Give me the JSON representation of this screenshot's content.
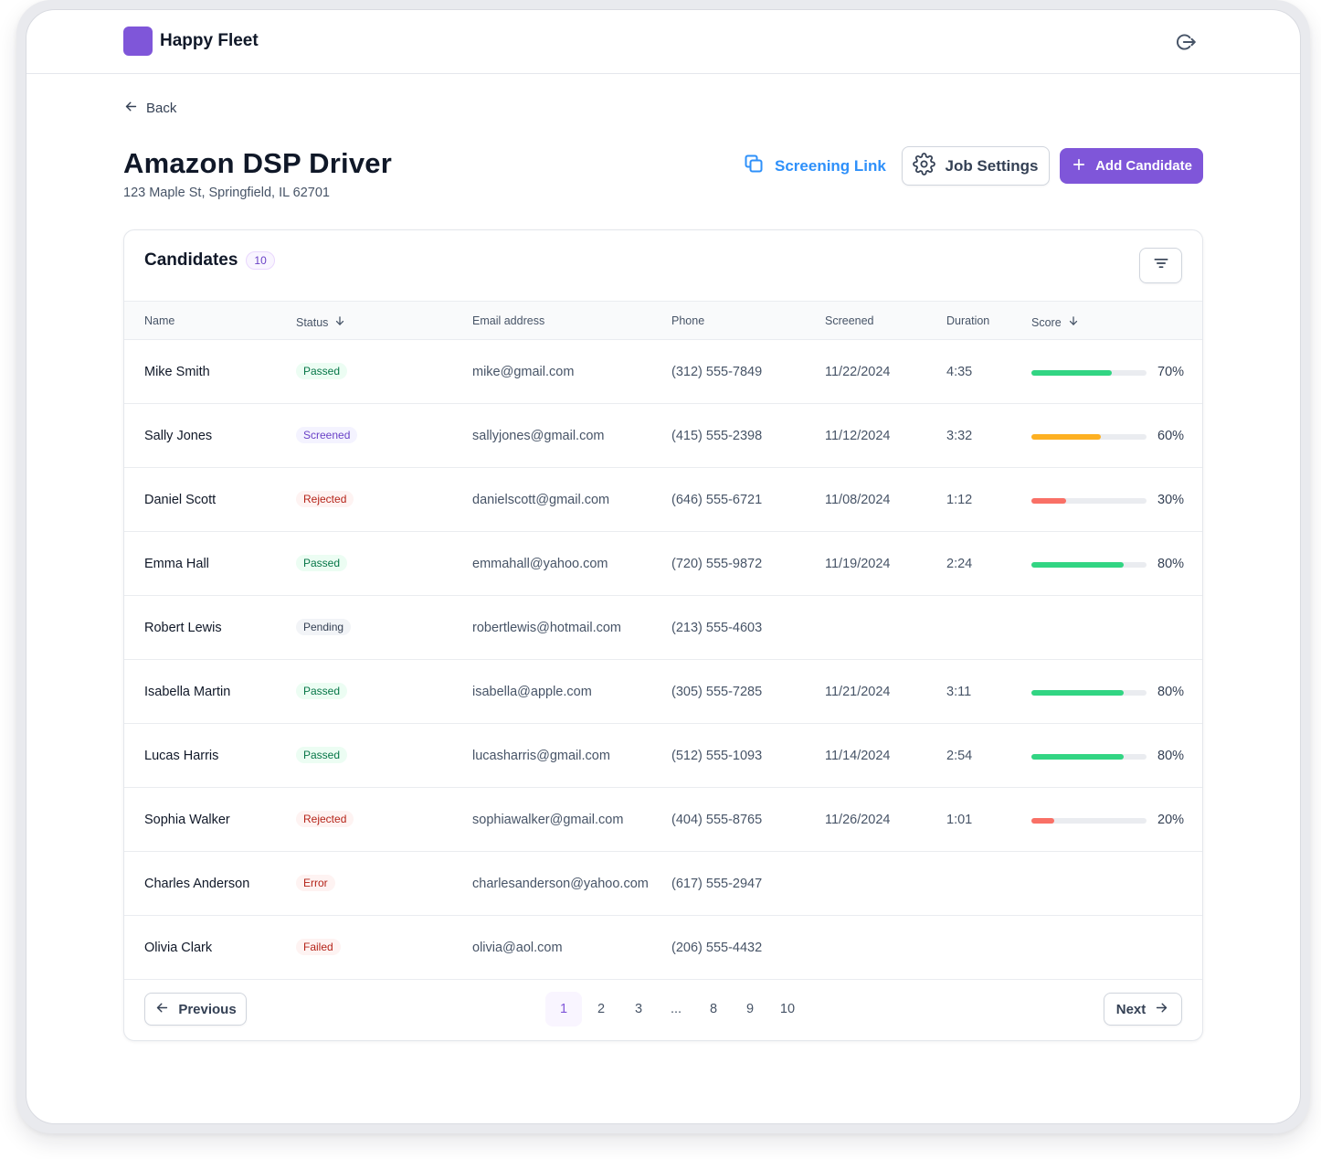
{
  "app": {
    "name": "Happy Fleet"
  },
  "nav": {
    "back_label": "Back"
  },
  "job": {
    "title": "Amazon DSP Driver",
    "address": "123 Maple St, Springfield, IL 62701"
  },
  "actions": {
    "screening_link": "Screening Link",
    "job_settings": "Job Settings",
    "add_candidate": "Add Candidate"
  },
  "candidates": {
    "title": "Candidates",
    "count": "10",
    "columns": {
      "name": "Name",
      "status": "Status",
      "email": "Email address",
      "phone": "Phone",
      "screened": "Screened",
      "duration": "Duration",
      "score": "Score"
    },
    "rows": [
      {
        "name": "Mike Smith",
        "status": "Passed",
        "email": "mike@gmail.com",
        "phone": "(312) 555-7849",
        "screened": "11/22/2024",
        "duration": "4:35",
        "score": 70,
        "score_label": "70%"
      },
      {
        "name": "Sally Jones",
        "status": "Screened",
        "email": "sallyjones@gmail.com",
        "phone": "(415) 555-2398",
        "screened": "11/12/2024",
        "duration": "3:32",
        "score": 60,
        "score_label": "60%"
      },
      {
        "name": "Daniel Scott",
        "status": "Rejected",
        "email": "danielscott@gmail.com",
        "phone": "(646) 555-6721",
        "screened": "11/08/2024",
        "duration": "1:12",
        "score": 30,
        "score_label": "30%"
      },
      {
        "name": "Emma Hall",
        "status": "Passed",
        "email": "emmahall@yahoo.com",
        "phone": "(720) 555-9872",
        "screened": "11/19/2024",
        "duration": "2:24",
        "score": 80,
        "score_label": "80%"
      },
      {
        "name": "Robert Lewis",
        "status": "Pending",
        "email": "robertlewis@hotmail.com",
        "phone": "(213) 555-4603",
        "screened": "",
        "duration": "",
        "score": null,
        "score_label": ""
      },
      {
        "name": "Isabella Martin",
        "status": "Passed",
        "email": "isabella@apple.com",
        "phone": "(305) 555-7285",
        "screened": "11/21/2024",
        "duration": "3:11",
        "score": 80,
        "score_label": "80%"
      },
      {
        "name": "Lucas Harris",
        "status": "Passed",
        "email": "lucasharris@gmail.com",
        "phone": "(512) 555-1093",
        "screened": "11/14/2024",
        "duration": "2:54",
        "score": 80,
        "score_label": "80%"
      },
      {
        "name": "Sophia Walker",
        "status": "Rejected",
        "email": "sophiawalker@gmail.com",
        "phone": "(404) 555-8765",
        "screened": "11/26/2024",
        "duration": "1:01",
        "score": 20,
        "score_label": "20%"
      },
      {
        "name": "Charles Anderson",
        "status": "Error",
        "email": "charlesanderson@yahoo.com",
        "phone": "(617) 555-2947",
        "screened": "",
        "duration": "",
        "score": null,
        "score_label": ""
      },
      {
        "name": "Olivia Clark",
        "status": "Failed",
        "email": "olivia@aol.com",
        "phone": "(206) 555-4432",
        "screened": "",
        "duration": "",
        "score": null,
        "score_label": ""
      }
    ]
  },
  "status_styles": {
    "Passed": {
      "bg": "#ecfdf3",
      "fg": "#067647"
    },
    "Screened": {
      "bg": "#f4f3ff",
      "fg": "#6941c6"
    },
    "Rejected": {
      "bg": "#fef3f2",
      "fg": "#b42318"
    },
    "Pending": {
      "bg": "#f2f4f7",
      "fg": "#344054"
    },
    "Error": {
      "bg": "#fef3f2",
      "fg": "#b42318"
    },
    "Failed": {
      "bg": "#fef3f2",
      "fg": "#b42318"
    }
  },
  "score_colors": {
    "high": "#32d583",
    "mid": "#fdb022",
    "low": "#f97066"
  },
  "pagination": {
    "previous": "Previous",
    "next": "Next",
    "pages": [
      "1",
      "2",
      "3",
      "...",
      "8",
      "9",
      "10"
    ],
    "current": "1"
  },
  "icons": {
    "logout": "logout-icon",
    "back": "arrow-left-icon",
    "link": "copy-link-icon",
    "settings": "gear-icon",
    "add": "plus-icon",
    "filter": "filter-lines-icon",
    "sort": "arrow-down-icon"
  },
  "colors": {
    "brand": "#7f56d9",
    "link": "#2e90fa"
  }
}
